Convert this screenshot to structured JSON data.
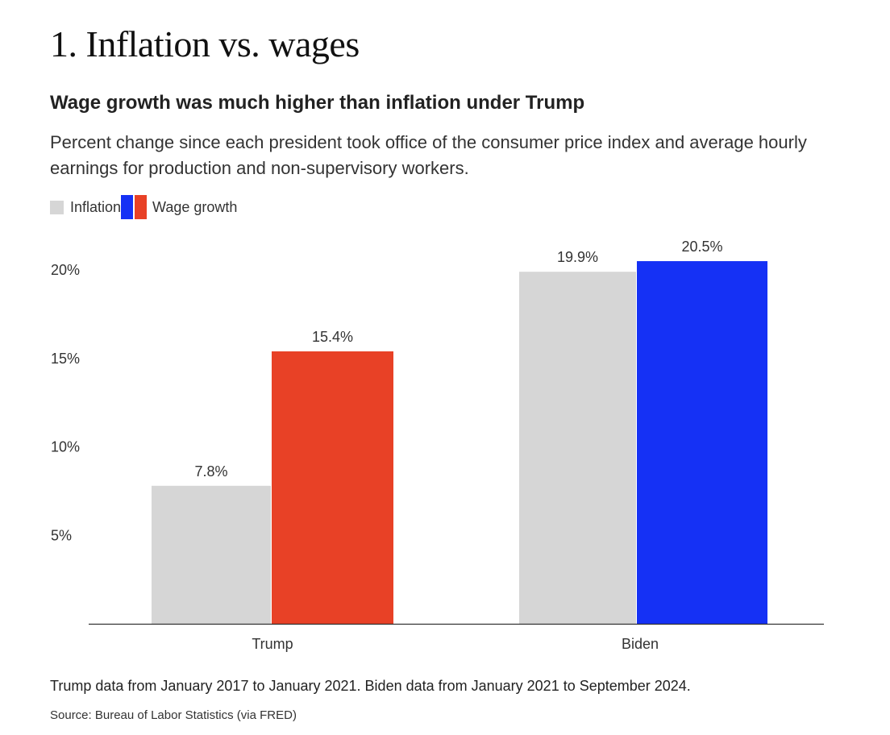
{
  "page": {
    "title": "1. Inflation vs. wages"
  },
  "chart_data": {
    "type": "bar",
    "title": "Wage growth was much higher than inflation under Trump",
    "subtitle": "Percent change since each president took office of the consumer price index and average hourly earnings for production and non-supervisory workers.",
    "categories": [
      "Trump",
      "Biden"
    ],
    "series": [
      {
        "name": "Inflation",
        "values": [
          7.8,
          19.9
        ],
        "labels": [
          "7.8%",
          "19.9%"
        ],
        "colors": [
          "#d6d6d6",
          "#d6d6d6"
        ]
      },
      {
        "name": "Wage growth",
        "values": [
          15.4,
          20.5
        ],
        "labels": [
          "15.4%",
          "20.5%"
        ],
        "colors": [
          "#e84126",
          "#1531f5"
        ]
      }
    ],
    "y_ticks": [
      5,
      10,
      15,
      20
    ],
    "y_tick_labels": [
      "5%",
      "10%",
      "15%",
      "20%"
    ],
    "ylim": [
      0,
      23
    ],
    "xlabel": "",
    "ylabel": "",
    "grid": false,
    "legend": {
      "position": "top-left",
      "items": [
        "Inflation",
        "Wage growth"
      ]
    }
  },
  "footnote": "Trump data from January 2017 to January 2021. Biden data from January 2021 to September 2024.",
  "source": "Source: Bureau of Labor Statistics (via FRED)",
  "colors": {
    "inflation": "#d6d6d6",
    "wage_trump": "#e84126",
    "wage_biden": "#1531f5",
    "axis": "#333333"
  }
}
